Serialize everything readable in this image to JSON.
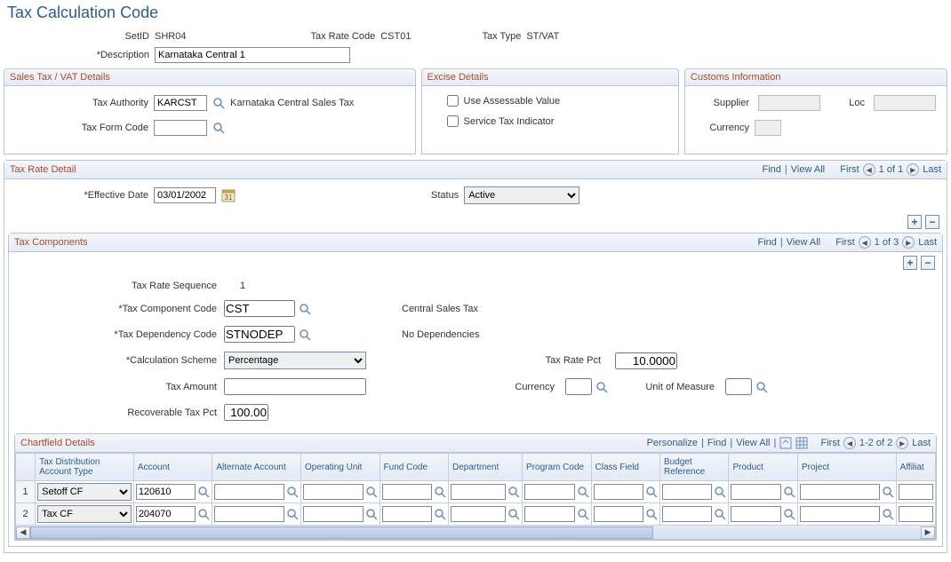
{
  "page_title": "Tax Calculation Code",
  "header": {
    "setid_label": "SetID",
    "setid_value": "SHR04",
    "tax_rate_code_label": "Tax Rate Code",
    "tax_rate_code_value": "CST01",
    "tax_type_label": "Tax Type",
    "tax_type_value": "ST/VAT",
    "description_label": "Description",
    "description_value": "Karnataka Central 1"
  },
  "sales_vat": {
    "title": "Sales Tax / VAT Details",
    "tax_authority_label": "Tax Authority",
    "tax_authority_value": "KARCST",
    "tax_authority_desc": "Karnataka Central Sales Tax",
    "tax_form_code_label": "Tax Form Code",
    "tax_form_code_value": ""
  },
  "excise": {
    "title": "Excise Details",
    "use_assessable_label": "Use Assessable Value",
    "service_tax_label": "Service Tax Indicator"
  },
  "customs": {
    "title": "Customs Information",
    "supplier_label": "Supplier",
    "supplier_value": "",
    "loc_label": "Loc",
    "loc_value": "",
    "currency_label": "Currency",
    "currency_value": ""
  },
  "tax_rate_detail": {
    "title": "Tax Rate Detail",
    "find": "Find",
    "view_all": "View All",
    "first": "First",
    "counter": "1 of 1",
    "last": "Last",
    "effective_date_label": "Effective Date",
    "effective_date_value": "03/01/2002",
    "status_label": "Status",
    "status_value": "Active"
  },
  "tax_components": {
    "title": "Tax Components",
    "find": "Find",
    "view_all": "View All",
    "first": "First",
    "counter": "1 of 3",
    "last": "Last",
    "tax_rate_seq_label": "Tax Rate Sequence",
    "tax_rate_seq_value": "1",
    "component_code_label": "Tax Component Code",
    "component_code_value": "CST",
    "component_code_desc": "Central Sales Tax",
    "dependency_code_label": "Tax Dependency Code",
    "dependency_code_value": "STNODEP",
    "dependency_code_desc": "No Dependencies",
    "calc_scheme_label": "Calculation Scheme",
    "calc_scheme_value": "Percentage",
    "tax_rate_pct_label": "Tax Rate Pct",
    "tax_rate_pct_value": "10.0000",
    "tax_amount_label": "Tax Amount",
    "tax_amount_value": "",
    "currency_label": "Currency",
    "currency_value": "",
    "uom_label": "Unit of Measure",
    "uom_value": "",
    "recoverable_label": "Recoverable Tax Pct",
    "recoverable_value": "100.00"
  },
  "chartfield": {
    "title": "Chartfield Details",
    "personalize": "Personalize",
    "find": "Find",
    "view_all": "View All",
    "first": "First",
    "counter": "1-2 of 2",
    "last": "Last",
    "columns": {
      "tax_dist_type": "Tax Distribution Account Type",
      "account": "Account",
      "alt_account": "Alternate Account",
      "op_unit": "Operating Unit",
      "fund_code": "Fund Code",
      "department": "Department",
      "program_code": "Program Code",
      "class_field": "Class Field",
      "budget_ref": "Budget Reference",
      "product": "Product",
      "project": "Project",
      "affiliate": "Affiliat"
    },
    "rows": [
      {
        "num": "1",
        "type": "Setoff CF",
        "account": "120610"
      },
      {
        "num": "2",
        "type": "Tax CF",
        "account": "204070"
      }
    ]
  }
}
